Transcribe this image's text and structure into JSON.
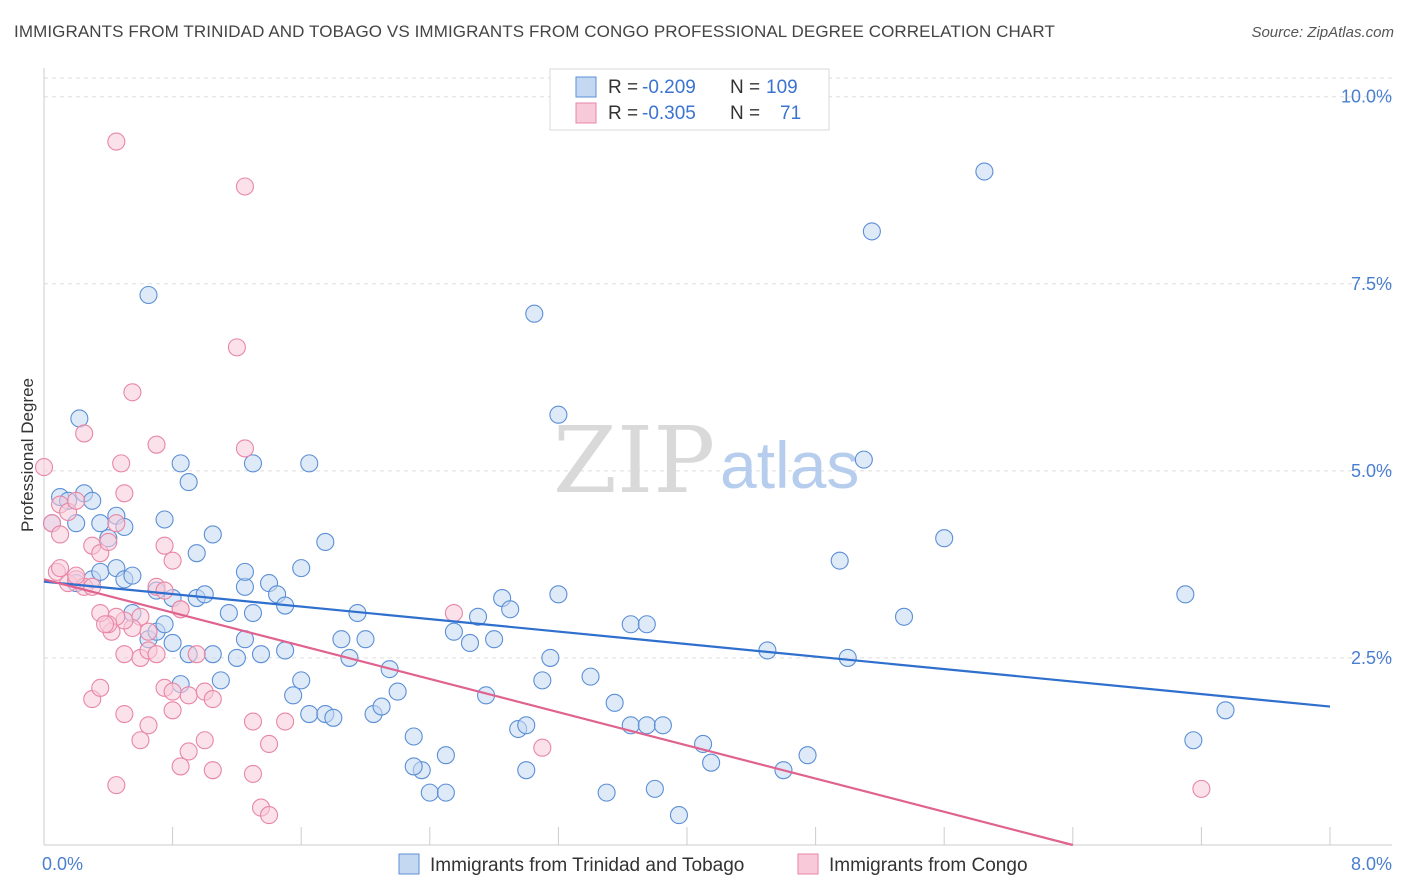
{
  "title": "IMMIGRANTS FROM TRINIDAD AND TOBAGO VS IMMIGRANTS FROM CONGO PROFESSIONAL DEGREE CORRELATION CHART",
  "source": "Source: ZipAtlas.com",
  "watermark": {
    "zip": "ZIP",
    "atlas": "atlas"
  },
  "legend": {
    "rows": [
      {
        "r_label": "R = ",
        "r_value": "-0.209",
        "n_label": "N = ",
        "n_value": "109"
      },
      {
        "r_label": "R = ",
        "r_value": "-0.305",
        "n_label": "N = ",
        "n_value": "71"
      }
    ]
  },
  "colors": {
    "blue": "#5b8fd6",
    "blue_fill": "#c5d8f2",
    "blue_line": "#2f6fcd",
    "pink": "#e886a6",
    "pink_fill": "#f8cad9",
    "pink_line": "#e0628f",
    "tick": "#4a7fd0"
  },
  "chart_data": {
    "type": "scatter",
    "title": "IMMIGRANTS FROM TRINIDAD AND TOBAGO VS IMMIGRANTS FROM CONGO PROFESSIONAL DEGREE CORRELATION CHART",
    "xlabel": "",
    "ylabel": "Professional Degree",
    "xlim": [
      0,
      8
    ],
    "ylim": [
      0,
      10.25
    ],
    "x_ticks": [
      {
        "value": 0,
        "label": "0.0%"
      },
      {
        "value": 8,
        "label": "8.0%"
      }
    ],
    "y_ticks": [
      {
        "value": 2.5,
        "label": "2.5%"
      },
      {
        "value": 5.0,
        "label": "5.0%"
      },
      {
        "value": 7.5,
        "label": "7.5%"
      },
      {
        "value": 10.0,
        "label": "10.0%"
      }
    ],
    "grid": true,
    "legend_position": "top-center",
    "series": [
      {
        "name": "Immigrants from Trinidad and Tobago",
        "color": "blue",
        "regression": {
          "x1": 0,
          "y1": 3.52,
          "x2": 8,
          "y2": 1.85
        },
        "points": [
          [
            0.05,
            4.3
          ],
          [
            0.1,
            4.65
          ],
          [
            0.15,
            4.6
          ],
          [
            0.2,
            4.3
          ],
          [
            0.25,
            4.7
          ],
          [
            0.3,
            4.6
          ],
          [
            0.35,
            4.3
          ],
          [
            0.4,
            4.1
          ],
          [
            0.45,
            4.4
          ],
          [
            0.5,
            4.25
          ],
          [
            0.22,
            5.7
          ],
          [
            0.65,
            7.35
          ],
          [
            0.75,
            4.35
          ],
          [
            0.2,
            3.5
          ],
          [
            0.3,
            3.55
          ],
          [
            0.35,
            3.65
          ],
          [
            0.45,
            3.7
          ],
          [
            0.5,
            3.55
          ],
          [
            0.55,
            3.6
          ],
          [
            0.7,
            3.4
          ],
          [
            0.8,
            3.3
          ],
          [
            0.95,
            3.3
          ],
          [
            1.0,
            3.35
          ],
          [
            1.15,
            3.1
          ],
          [
            1.25,
            3.45
          ],
          [
            1.3,
            3.1
          ],
          [
            1.4,
            3.5
          ],
          [
            1.45,
            3.35
          ],
          [
            1.5,
            3.2
          ],
          [
            1.6,
            3.7
          ],
          [
            0.85,
            5.1
          ],
          [
            0.9,
            4.85
          ],
          [
            1.3,
            5.1
          ],
          [
            1.65,
            5.1
          ],
          [
            1.05,
            4.15
          ],
          [
            0.95,
            3.9
          ],
          [
            1.25,
            3.65
          ],
          [
            1.75,
            4.05
          ],
          [
            0.55,
            3.1
          ],
          [
            0.65,
            2.75
          ],
          [
            0.7,
            2.85
          ],
          [
            0.75,
            2.95
          ],
          [
            0.8,
            2.7
          ],
          [
            0.85,
            2.15
          ],
          [
            0.9,
            2.55
          ],
          [
            1.05,
            2.55
          ],
          [
            1.1,
            2.2
          ],
          [
            1.2,
            2.5
          ],
          [
            1.25,
            2.75
          ],
          [
            1.35,
            2.55
          ],
          [
            1.5,
            2.6
          ],
          [
            1.55,
            2.0
          ],
          [
            1.6,
            2.2
          ],
          [
            1.65,
            1.75
          ],
          [
            1.75,
            1.75
          ],
          [
            1.8,
            1.7
          ],
          [
            1.85,
            2.75
          ],
          [
            1.9,
            2.5
          ],
          [
            1.95,
            3.1
          ],
          [
            2.0,
            2.75
          ],
          [
            2.05,
            1.75
          ],
          [
            2.1,
            1.85
          ],
          [
            2.15,
            2.35
          ],
          [
            2.2,
            2.05
          ],
          [
            2.3,
            1.45
          ],
          [
            2.35,
            1.0
          ],
          [
            2.4,
            0.7
          ],
          [
            2.5,
            0.7
          ],
          [
            2.3,
            1.05
          ],
          [
            2.5,
            1.2
          ],
          [
            2.55,
            2.85
          ],
          [
            2.65,
            2.7
          ],
          [
            2.7,
            3.05
          ],
          [
            2.75,
            2.0
          ],
          [
            2.8,
            2.75
          ],
          [
            2.85,
            3.3
          ],
          [
            2.9,
            3.15
          ],
          [
            2.95,
            1.55
          ],
          [
            3.0,
            1.0
          ],
          [
            3.1,
            2.2
          ],
          [
            3.15,
            2.5
          ],
          [
            3.0,
            1.6
          ],
          [
            3.2,
            3.35
          ],
          [
            3.4,
            2.25
          ],
          [
            3.5,
            0.7
          ],
          [
            3.55,
            1.9
          ],
          [
            3.65,
            2.95
          ],
          [
            3.75,
            2.95
          ],
          [
            3.65,
            1.6
          ],
          [
            3.75,
            1.6
          ],
          [
            3.8,
            0.75
          ],
          [
            3.85,
            1.6
          ],
          [
            3.95,
            0.4
          ],
          [
            4.1,
            1.35
          ],
          [
            4.15,
            1.1
          ],
          [
            4.5,
            2.6
          ],
          [
            4.6,
            1.0
          ],
          [
            4.75,
            1.2
          ],
          [
            4.95,
            3.8
          ],
          [
            5.0,
            2.5
          ],
          [
            5.15,
            8.2
          ],
          [
            5.1,
            5.15
          ],
          [
            5.35,
            3.05
          ],
          [
            5.6,
            4.1
          ],
          [
            5.85,
            9.0
          ],
          [
            3.05,
            7.1
          ],
          [
            3.2,
            5.75
          ],
          [
            7.1,
            3.35
          ],
          [
            7.15,
            1.4
          ],
          [
            7.35,
            1.8
          ]
        ]
      },
      {
        "name": "Immigrants from Congo",
        "color": "pink",
        "regression": {
          "x1": 0,
          "y1": 3.55,
          "x2": 6.4,
          "y2": 0.0
        },
        "points": [
          [
            0.1,
            4.55
          ],
          [
            0.15,
            4.45
          ],
          [
            0.2,
            4.6
          ],
          [
            0.05,
            4.3
          ],
          [
            0.08,
            3.65
          ],
          [
            0.1,
            3.7
          ],
          [
            0.15,
            3.5
          ],
          [
            0.2,
            3.55
          ],
          [
            0.25,
            3.45
          ],
          [
            0.3,
            4.0
          ],
          [
            0.35,
            3.9
          ],
          [
            0.4,
            4.05
          ],
          [
            0.45,
            4.3
          ],
          [
            0.5,
            4.7
          ],
          [
            0.25,
            5.5
          ],
          [
            0.55,
            6.05
          ],
          [
            0.48,
            5.1
          ],
          [
            0.7,
            5.35
          ],
          [
            0.75,
            4.0
          ],
          [
            0.8,
            3.8
          ],
          [
            0.7,
            3.45
          ],
          [
            0.85,
            3.15
          ],
          [
            0.6,
            3.05
          ],
          [
            0.65,
            2.85
          ],
          [
            0.55,
            2.9
          ],
          [
            0.5,
            3.0
          ],
          [
            0.45,
            3.05
          ],
          [
            0.42,
            2.85
          ],
          [
            0.4,
            2.95
          ],
          [
            0.5,
            2.55
          ],
          [
            0.6,
            2.5
          ],
          [
            0.65,
            2.6
          ],
          [
            0.7,
            2.55
          ],
          [
            0.75,
            2.1
          ],
          [
            0.8,
            2.05
          ],
          [
            0.9,
            2.0
          ],
          [
            0.95,
            2.55
          ],
          [
            1.0,
            2.05
          ],
          [
            1.05,
            1.95
          ],
          [
            0.3,
            1.95
          ],
          [
            0.35,
            2.1
          ],
          [
            0.5,
            1.75
          ],
          [
            0.6,
            1.4
          ],
          [
            0.65,
            1.6
          ],
          [
            0.8,
            1.8
          ],
          [
            0.85,
            1.05
          ],
          [
            0.9,
            1.25
          ],
          [
            1.0,
            1.4
          ],
          [
            1.05,
            1.0
          ],
          [
            1.3,
            1.65
          ],
          [
            1.4,
            1.35
          ],
          [
            1.3,
            0.95
          ],
          [
            1.35,
            0.5
          ],
          [
            1.4,
            0.4
          ],
          [
            0.45,
            0.8
          ],
          [
            0.45,
            9.4
          ],
          [
            1.25,
            8.8
          ],
          [
            1.2,
            6.65
          ],
          [
            1.25,
            5.3
          ],
          [
            0.0,
            5.05
          ],
          [
            0.1,
            4.15
          ],
          [
            0.2,
            3.6
          ],
          [
            0.3,
            3.45
          ],
          [
            0.35,
            3.1
          ],
          [
            0.38,
            2.95
          ],
          [
            0.75,
            3.4
          ],
          [
            0.85,
            3.15
          ],
          [
            1.5,
            1.65
          ],
          [
            2.55,
            3.1
          ],
          [
            3.1,
            1.3
          ],
          [
            7.2,
            0.75
          ]
        ]
      }
    ]
  },
  "bottom_legend": [
    {
      "label": "Immigrants from Trinidad and Tobago",
      "color": "blue"
    },
    {
      "label": "Immigrants from Congo",
      "color": "pink"
    }
  ]
}
